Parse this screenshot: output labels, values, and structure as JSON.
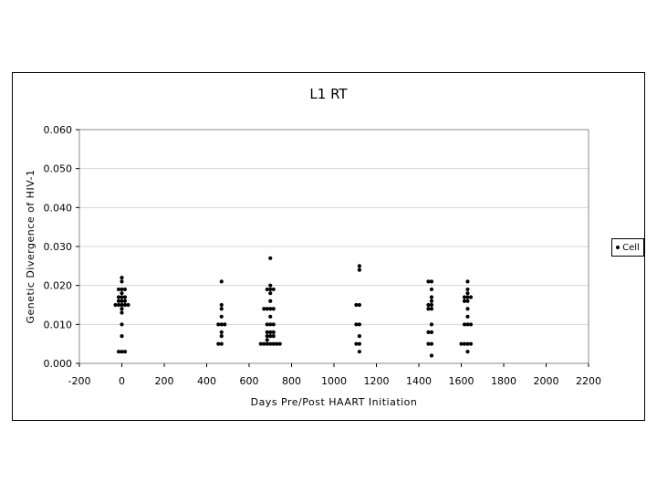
{
  "chart_data": {
    "type": "scatter",
    "title": "L1 RT",
    "xlabel": "Days Pre/Post HAART Initiation",
    "ylabel": "Genetic Divergence of HIV-1",
    "xlim": [
      -200,
      2200
    ],
    "ylim": [
      0,
      0.06
    ],
    "xticks": [
      "-200",
      "0",
      "200",
      "400",
      "600",
      "800",
      "1000",
      "1200",
      "1400",
      "1600",
      "1800",
      "2000",
      "2200"
    ],
    "yticks": [
      "0.000",
      "0.010",
      "0.020",
      "0.030",
      "0.040",
      "0.050",
      "0.060"
    ],
    "grid": "horizontal",
    "legend_position": "right",
    "series": [
      {
        "name": "Cell",
        "color": "#000000",
        "points": [
          [
            0,
            0.022
          ],
          [
            0,
            0.021
          ],
          [
            0,
            0.019
          ],
          [
            0,
            0.018
          ],
          [
            0,
            0.017
          ],
          [
            0,
            0.016
          ],
          [
            0,
            0.015
          ],
          [
            0,
            0.014
          ],
          [
            0,
            0.013
          ],
          [
            0,
            0.01
          ],
          [
            0,
            0.007
          ],
          [
            0,
            0.003
          ],
          [
            -15,
            0.019
          ],
          [
            15,
            0.019
          ],
          [
            -15,
            0.017
          ],
          [
            15,
            0.017
          ],
          [
            -15,
            0.016
          ],
          [
            15,
            0.016
          ],
          [
            -30,
            0.015
          ],
          [
            -15,
            0.015
          ],
          [
            15,
            0.015
          ],
          [
            30,
            0.015
          ],
          [
            -15,
            0.003
          ],
          [
            15,
            0.003
          ],
          [
            470,
            0.021
          ],
          [
            470,
            0.015
          ],
          [
            470,
            0.014
          ],
          [
            470,
            0.012
          ],
          [
            470,
            0.01
          ],
          [
            470,
            0.008
          ],
          [
            470,
            0.007
          ],
          [
            470,
            0.005
          ],
          [
            455,
            0.01
          ],
          [
            485,
            0.01
          ],
          [
            455,
            0.005
          ],
          [
            700,
            0.027
          ],
          [
            700,
            0.02
          ],
          [
            700,
            0.019
          ],
          [
            700,
            0.018
          ],
          [
            700,
            0.016
          ],
          [
            700,
            0.014
          ],
          [
            700,
            0.012
          ],
          [
            700,
            0.01
          ],
          [
            700,
            0.008
          ],
          [
            700,
            0.007
          ],
          [
            700,
            0.005
          ],
          [
            685,
            0.019
          ],
          [
            715,
            0.019
          ],
          [
            685,
            0.014
          ],
          [
            715,
            0.014
          ],
          [
            685,
            0.01
          ],
          [
            715,
            0.01
          ],
          [
            685,
            0.008
          ],
          [
            715,
            0.008
          ],
          [
            685,
            0.007
          ],
          [
            715,
            0.007
          ],
          [
            685,
            0.006
          ],
          [
            655,
            0.005
          ],
          [
            670,
            0.005
          ],
          [
            685,
            0.005
          ],
          [
            715,
            0.005
          ],
          [
            730,
            0.005
          ],
          [
            745,
            0.005
          ],
          [
            670,
            0.014
          ],
          [
            1120,
            0.025
          ],
          [
            1120,
            0.024
          ],
          [
            1120,
            0.015
          ],
          [
            1120,
            0.01
          ],
          [
            1120,
            0.007
          ],
          [
            1120,
            0.005
          ],
          [
            1120,
            0.003
          ],
          [
            1105,
            0.015
          ],
          [
            1105,
            0.01
          ],
          [
            1105,
            0.005
          ],
          [
            1460,
            0.021
          ],
          [
            1460,
            0.019
          ],
          [
            1460,
            0.017
          ],
          [
            1460,
            0.016
          ],
          [
            1460,
            0.015
          ],
          [
            1460,
            0.014
          ],
          [
            1460,
            0.01
          ],
          [
            1460,
            0.008
          ],
          [
            1460,
            0.005
          ],
          [
            1460,
            0.002
          ],
          [
            1445,
            0.021
          ],
          [
            1445,
            0.015
          ],
          [
            1445,
            0.014
          ],
          [
            1445,
            0.008
          ],
          [
            1445,
            0.005
          ],
          [
            1630,
            0.021
          ],
          [
            1630,
            0.019
          ],
          [
            1630,
            0.018
          ],
          [
            1630,
            0.017
          ],
          [
            1630,
            0.016
          ],
          [
            1630,
            0.014
          ],
          [
            1630,
            0.012
          ],
          [
            1630,
            0.01
          ],
          [
            1630,
            0.005
          ],
          [
            1630,
            0.003
          ],
          [
            1615,
            0.017
          ],
          [
            1645,
            0.017
          ],
          [
            1615,
            0.016
          ],
          [
            1615,
            0.01
          ],
          [
            1645,
            0.01
          ],
          [
            1600,
            0.005
          ],
          [
            1615,
            0.005
          ],
          [
            1645,
            0.005
          ]
        ]
      }
    ]
  }
}
